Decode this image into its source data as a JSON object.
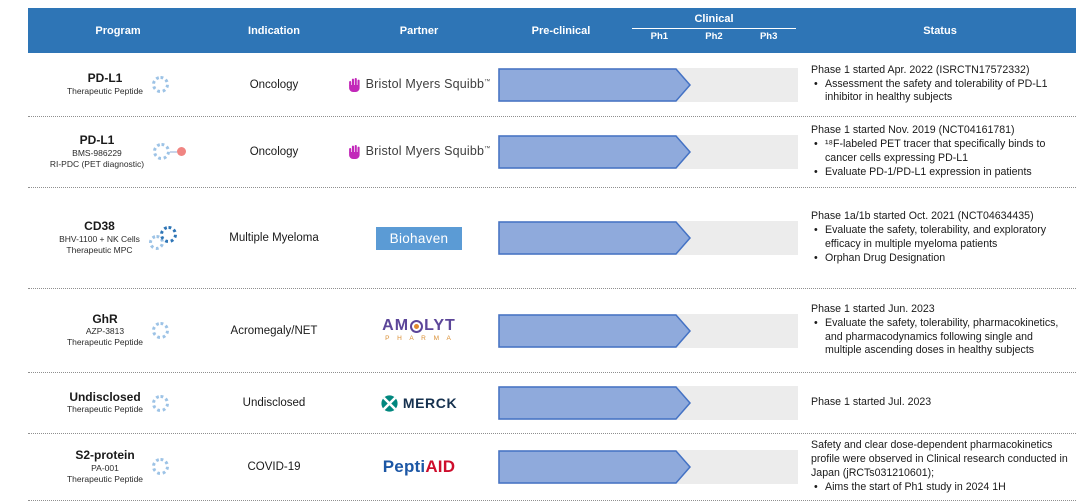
{
  "header": {
    "program": "Program",
    "indication": "Indication",
    "partner": "Partner",
    "preclinical": "Pre-clinical",
    "clinical": "Clinical",
    "phases": [
      "Ph1",
      "Ph2",
      "Ph3"
    ],
    "status": "Status"
  },
  "colors": {
    "header_bg": "#2E75B6",
    "bar_fill": "#8FAADC",
    "bar_border": "#4472C4",
    "bar_track": "#ECECEC",
    "peptide_icon_blue": "#9DC3E6",
    "peptide_icon_dark_blue": "#2E75B6",
    "pet_dot_red": "#F08582",
    "bms_magenta": "#C228B9",
    "biohaven_bg": "#5B9BD5",
    "merck_teal": "#00877E",
    "peptiaid_blue": "#1C57A5",
    "peptiaid_red": "#CE0E2D",
    "amolyt_purple": "#5C4699",
    "amolyt_orange": "#D98E32"
  },
  "rows": [
    {
      "program": {
        "name": "PD-L1",
        "sub1": "Therapeutic Peptide"
      },
      "indication": "Oncology",
      "partner": {
        "type": "bms",
        "label": "Bristol Myers Squibb",
        "tm": "™"
      },
      "progress_pct": 64,
      "status": {
        "title": "Phase 1 started Apr. 2022 (ISRCTN17572332)",
        "bullets": [
          "Assessment the safety and tolerability of PD-L1 inhibitor in healthy subjects"
        ]
      }
    },
    {
      "program": {
        "name": "PD-L1",
        "sub1": "BMS-986229",
        "sub2": "RI-PDC (PET diagnostic)"
      },
      "indication": "Oncology",
      "partner": {
        "type": "bms",
        "label": "Bristol Myers Squibb",
        "tm": "™"
      },
      "progress_pct": 64,
      "status": {
        "title": "Phase 1 started Nov. 2019 (NCT04161781)",
        "bullets": [
          "¹⁸F-labeled PET tracer that specifically binds to cancer cells expressing PD-L1",
          "Evaluate PD-1/PD-L1 expression in patients"
        ]
      }
    },
    {
      "program": {
        "name": "CD38",
        "sub1": "BHV-1100 + NK Cells",
        "sub2": "Therapeutic MPC"
      },
      "indication": "Multiple Myeloma",
      "partner": {
        "type": "biohaven",
        "label": "Biohaven"
      },
      "progress_pct": 64,
      "status": {
        "title": "Phase 1a/1b started Oct. 2021 (NCT04634435)",
        "bullets": [
          "Evaluate the safety, tolerability, and exploratory efficacy in multiple myeloma patients",
          "Orphan Drug Designation"
        ]
      }
    },
    {
      "program": {
        "name": "GhR",
        "sub1": "AZP-3813",
        "sub2": "Therapeutic Peptide"
      },
      "indication": "Acromegaly/NET",
      "partner": {
        "type": "amolyt",
        "am": "AM",
        "lyt": "LYT",
        "pharma": "P H A R M A"
      },
      "progress_pct": 64,
      "status": {
        "title": "Phase 1 started Jun. 2023",
        "bullets": [
          "Evaluate the safety, tolerability, pharmacokinetics, and pharmacodynamics following single and multiple ascending doses in healthy subjects"
        ]
      }
    },
    {
      "program": {
        "name": "Undisclosed",
        "sub1": "Therapeutic Peptide"
      },
      "indication": "Undisclosed",
      "partner": {
        "type": "merck",
        "label": "MERCK"
      },
      "progress_pct": 64,
      "status": {
        "title": "Phase 1 started Jul. 2023",
        "bullets": []
      }
    },
    {
      "program": {
        "name": "S2-protein",
        "sub1": "PA-001",
        "sub2": "Therapeutic Peptide"
      },
      "indication": "COVID-19",
      "partner": {
        "type": "peptiaid",
        "pepti": "Pepti",
        "aid": "AID"
      },
      "progress_pct": 64,
      "status": {
        "title": "Safety and clear dose-dependent pharmacokinetics profile were observed in Clinical research conducted in Japan (jRCTs031210601);",
        "bullets": [
          "Aims the start of Ph1 study in 2024 1H"
        ]
      }
    }
  ]
}
